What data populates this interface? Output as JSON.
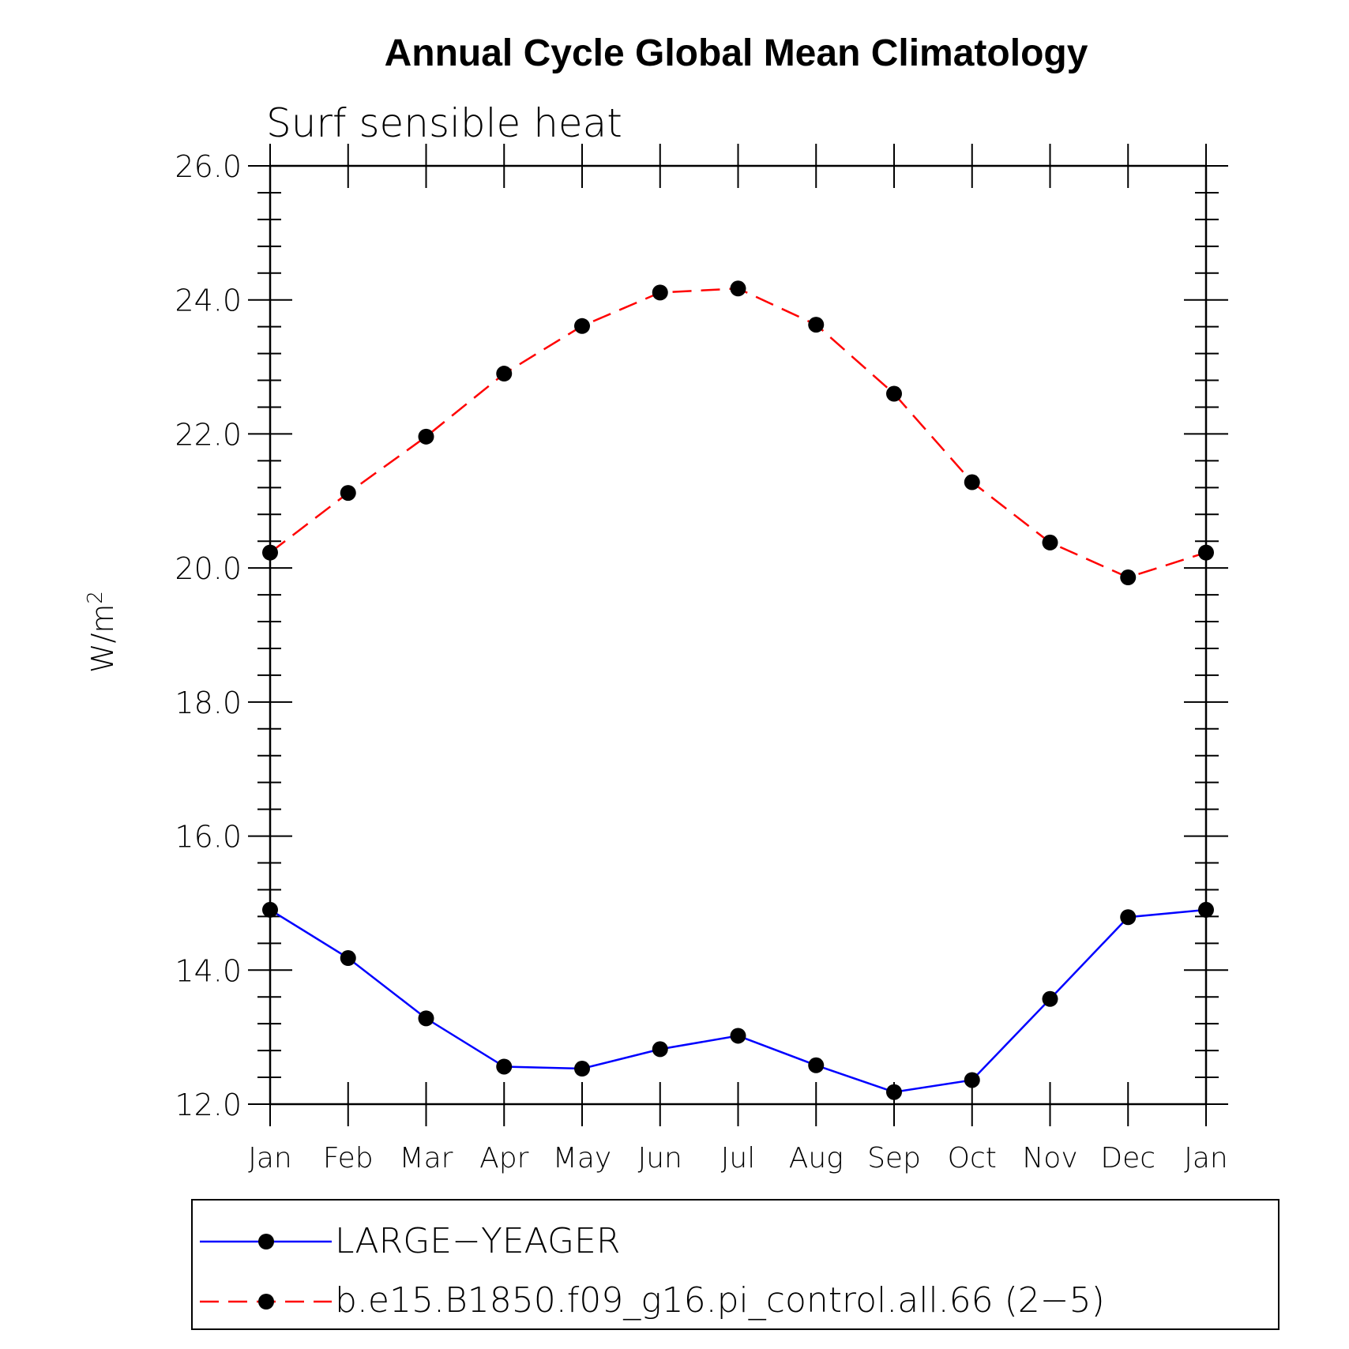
{
  "chart_data": {
    "type": "line",
    "title": "Annual Cycle Global Mean Climatology",
    "subtitle": "Surf sensible heat",
    "ylabel": "W/m",
    "ylabel_superscript": "2",
    "ylim": [
      12.0,
      26.0
    ],
    "y_major_ticks": [
      "12.0",
      "14.0",
      "16.0",
      "18.0",
      "20.0",
      "22.0",
      "24.0",
      "26.0"
    ],
    "categories": [
      "Jan",
      "Feb",
      "Mar",
      "Apr",
      "May",
      "Jun",
      "Jul",
      "Aug",
      "Sep",
      "Oct",
      "Nov",
      "Dec",
      "Jan"
    ],
    "grid": false,
    "legend_position": "bottom",
    "series": [
      {
        "name": "LARGE−YEAGER",
        "color": "#0000ff",
        "line_style": "solid",
        "marker": "filled-circle",
        "values": [
          14.9,
          14.18,
          13.28,
          12.56,
          12.53,
          12.82,
          13.02,
          12.58,
          12.18,
          12.36,
          13.57,
          14.79,
          14.9
        ]
      },
      {
        "name": "b.e15.B1850.f09_g16.pi_control.all.66 (2−5)",
        "color": "#ff0000",
        "line_style": "dashed",
        "marker": "filled-circle",
        "values": [
          20.23,
          21.12,
          21.96,
          22.9,
          23.61,
          24.11,
          24.17,
          23.63,
          22.6,
          21.28,
          20.38,
          19.86,
          20.23
        ]
      }
    ]
  }
}
